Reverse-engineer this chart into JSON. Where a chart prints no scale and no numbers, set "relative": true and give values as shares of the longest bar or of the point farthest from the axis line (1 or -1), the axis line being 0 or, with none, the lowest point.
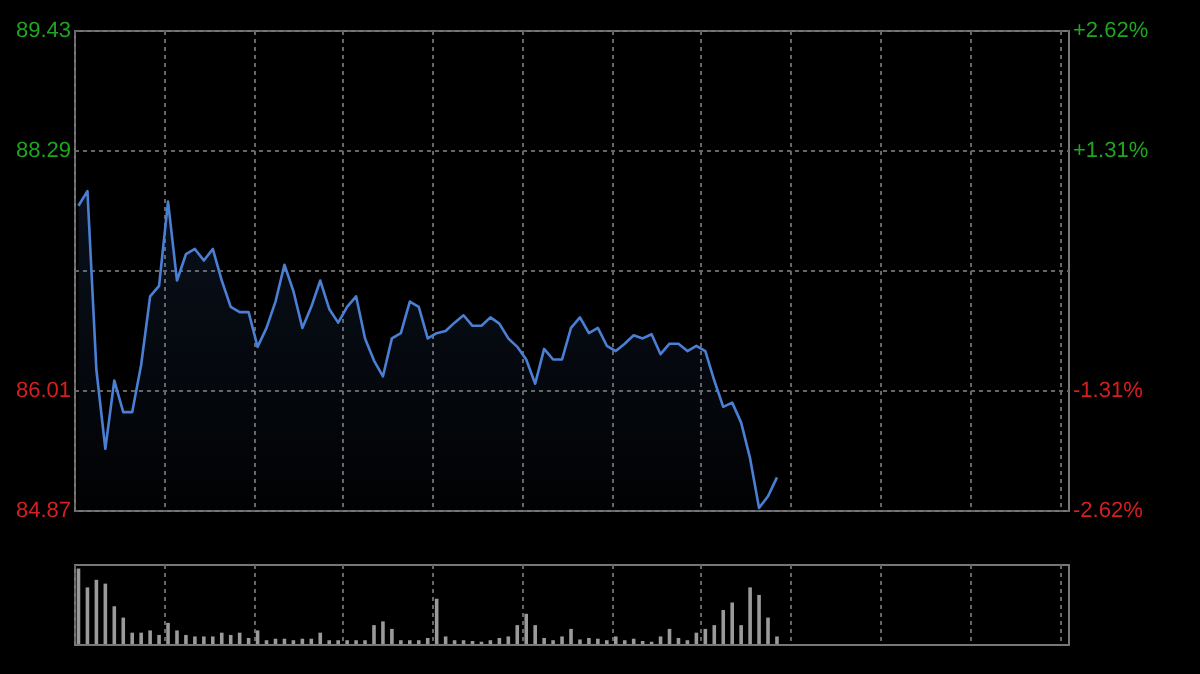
{
  "chart_data": [
    {
      "type": "area",
      "categories": [
        null,
        null,
        null,
        null,
        null,
        null,
        null,
        null,
        null,
        null,
        null,
        null,
        null,
        null,
        null,
        null,
        null,
        null,
        null,
        null,
        null,
        null,
        null,
        null,
        null,
        null,
        null,
        null,
        null,
        null,
        null,
        null,
        null,
        null,
        null,
        null,
        null,
        null,
        null,
        null,
        null,
        null,
        null,
        null,
        null,
        null,
        null,
        null,
        null,
        null,
        null,
        null,
        null,
        null,
        null,
        null,
        null,
        null,
        null,
        null,
        null,
        null,
        null,
        null,
        null,
        null,
        null,
        null,
        null,
        null,
        null,
        null,
        null,
        null,
        null,
        null,
        null,
        null,
        null
      ],
      "series": [
        {
          "color": "#4a7fd4",
          "values": [
            87.76,
            87.9,
            86.2,
            85.45,
            86.1,
            85.8,
            85.8,
            86.25,
            86.9,
            87.0,
            87.8,
            87.05,
            87.3,
            87.35,
            87.24,
            87.35,
            87.05,
            86.8,
            86.75,
            86.75,
            86.42,
            86.6,
            86.85,
            87.2,
            86.95,
            86.6,
            86.8,
            87.05,
            86.78,
            86.65,
            86.8,
            86.9,
            86.5,
            86.29,
            86.14,
            86.5,
            86.55,
            86.85,
            86.8,
            86.5,
            86.55,
            86.57,
            86.65,
            86.72,
            86.62,
            86.62,
            86.7,
            86.64,
            86.5,
            86.42,
            86.3,
            86.07,
            86.4,
            86.3,
            86.3,
            86.6,
            86.7,
            86.55,
            86.6,
            86.43,
            86.38,
            86.45,
            86.53,
            86.5,
            86.54,
            86.35,
            86.45,
            86.45,
            86.38,
            86.43,
            86.38,
            86.1,
            85.85,
            85.89,
            85.7,
            85.36,
            84.89,
            85.0,
            85.18
          ]
        }
      ],
      "ylim": [
        84.87,
        89.43
      ],
      "yticks": [
        84.87,
        86.01,
        {
          "value": 87.15,
          "label": null
        },
        88.29,
        89.43
      ],
      "y2lim": [
        -2.62,
        2.62
      ],
      "y2ticks": [
        {
          "value": -2.62,
          "label": "-2.62%"
        },
        {
          "value": -1.31,
          "label": "-1.31%"
        },
        {
          "value": 0,
          "label": null
        },
        {
          "value": 1.31,
          "label": "+1.31%"
        },
        {
          "value": 2.62,
          "label": "+2.62%"
        }
      ],
      "grid": true,
      "tick_labels": "y"
    },
    {
      "type": "bar",
      "relative": true,
      "grid": "x",
      "categories": [
        null,
        null,
        null,
        null,
        null,
        null,
        null,
        null,
        null,
        null,
        null,
        null,
        null,
        null,
        null,
        null,
        null,
        null,
        null,
        null,
        null,
        null,
        null,
        null,
        null,
        null,
        null,
        null,
        null,
        null,
        null,
        null,
        null,
        null,
        null,
        null,
        null,
        null,
        null,
        null,
        null,
        null,
        null,
        null,
        null,
        null,
        null,
        null,
        null,
        null,
        null,
        null,
        null,
        null,
        null,
        null,
        null,
        null,
        null,
        null,
        null,
        null,
        null,
        null,
        null,
        null,
        null,
        null,
        null,
        null,
        null,
        null,
        null,
        null,
        null,
        null,
        null,
        null,
        null
      ],
      "series": [
        {
          "color": "#9a9a9a",
          "values": [
            1.0,
            0.75,
            0.85,
            0.8,
            0.5,
            0.35,
            0.15,
            0.15,
            0.18,
            0.12,
            0.28,
            0.18,
            0.12,
            0.1,
            0.1,
            0.1,
            0.15,
            0.12,
            0.15,
            0.08,
            0.18,
            0.05,
            0.07,
            0.07,
            0.05,
            0.07,
            0.07,
            0.15,
            0.05,
            0.05,
            0.05,
            0.05,
            0.05,
            0.25,
            0.3,
            0.2,
            0.05,
            0.05,
            0.05,
            0.08,
            0.6,
            0.1,
            0.05,
            0.05,
            0.04,
            0.03,
            0.05,
            0.08,
            0.1,
            0.25,
            0.4,
            0.25,
            0.08,
            0.05,
            0.1,
            0.2,
            0.06,
            0.08,
            0.07,
            0.05,
            0.1,
            0.05,
            0.07,
            0.04,
            0.03,
            0.1,
            0.2,
            0.08,
            0.05,
            0.15,
            0.2,
            0.25,
            0.45,
            0.55,
            0.25,
            0.75,
            0.65,
            0.35,
            0.1
          ]
        }
      ]
    }
  ]
}
